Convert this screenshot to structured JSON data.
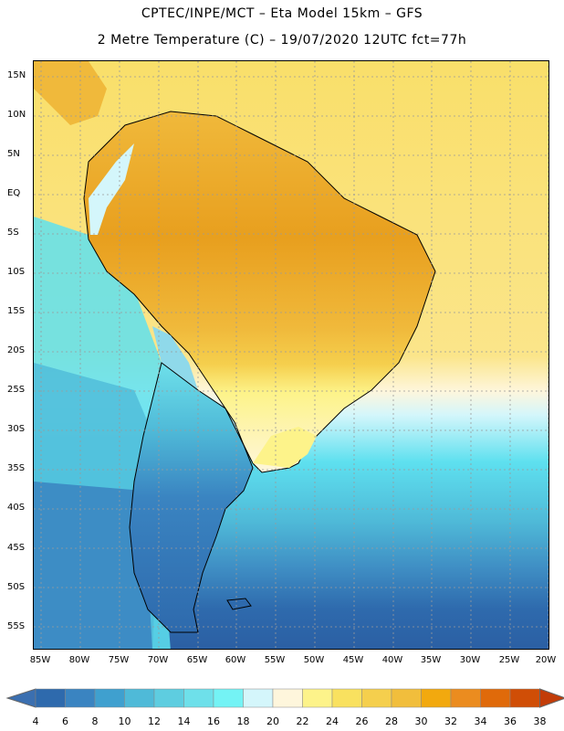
{
  "header": {
    "title_line1": "CPTEC/INPE/MCT –  Eta Model 15km – GFS",
    "title_line2": "2 Metre Temperature (C) – 19/07/2020 12UTC fct=77h"
  },
  "map": {
    "lat_labels": [
      "15N",
      "10N",
      "5N",
      "EQ",
      "5S",
      "10S",
      "15S",
      "20S",
      "25S",
      "30S",
      "35S",
      "40S",
      "45S",
      "50S",
      "55S"
    ],
    "lon_labels": [
      "85W",
      "80W",
      "75W",
      "70W",
      "65W",
      "60W",
      "55W",
      "50W",
      "45W",
      "40W",
      "35W",
      "30W",
      "25W",
      "20W"
    ],
    "ocean_colors": {
      "warm": "#f9df6a",
      "cool": "#5ee0ef",
      "cold": "#3f8ec4",
      "coldest": "#2b5fa3"
    },
    "land_colors": {
      "hot": "#e89f1e",
      "warm": "#f0b93b",
      "mild": "#f7d35a",
      "andes": "#8fd9ea",
      "south": "#2e74b5"
    }
  },
  "legend": {
    "ticks": [
      "4",
      "6",
      "8",
      "10",
      "12",
      "14",
      "16",
      "18",
      "20",
      "22",
      "24",
      "26",
      "28",
      "30",
      "32",
      "34",
      "36",
      "38"
    ],
    "colors": [
      "#3b6fb0",
      "#2e6aad",
      "#3a84c1",
      "#3fa0cf",
      "#4fbad8",
      "#5ecde0",
      "#6ee0ea",
      "#74f3f5",
      "#d4f6fb",
      "#fef6dc",
      "#fdf38a",
      "#f9e15f",
      "#f5cf4d",
      "#f1be3c",
      "#f2a90e",
      "#eb8c1f",
      "#e06a0a",
      "#d04e06",
      "#c23c08"
    ]
  }
}
